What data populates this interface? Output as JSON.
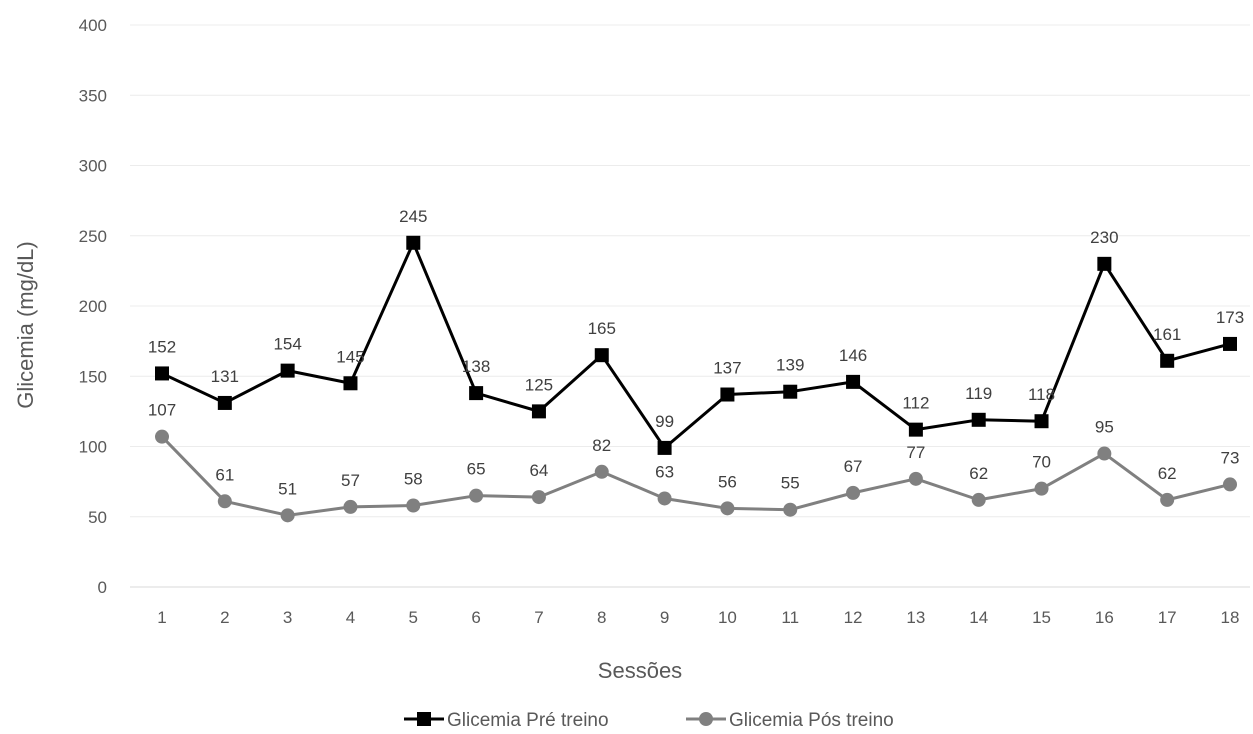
{
  "chart_data": {
    "type": "line",
    "title": "",
    "xlabel": "Sessões",
    "ylabel": "Glicemia (mg/dL)",
    "ylim": [
      0,
      400
    ],
    "yticks": [
      0,
      50,
      100,
      150,
      200,
      250,
      300,
      350,
      400
    ],
    "grid": true,
    "legend_position": "bottom",
    "categories": [
      "1",
      "2",
      "3",
      "4",
      "5",
      "6",
      "7",
      "8",
      "9",
      "10",
      "11",
      "12",
      "13",
      "14",
      "15",
      "16",
      "17",
      "18"
    ],
    "series": [
      {
        "name": "Glicemia Pré treino",
        "marker": "square",
        "color": "#000000",
        "values": [
          152,
          131,
          154,
          145,
          245,
          138,
          125,
          165,
          99,
          137,
          139,
          146,
          112,
          119,
          118,
          230,
          161,
          173
        ]
      },
      {
        "name": "Glicemia Pós treino",
        "marker": "circle",
        "color": "#808080",
        "values": [
          107,
          61,
          51,
          57,
          58,
          65,
          64,
          82,
          63,
          56,
          55,
          67,
          77,
          62,
          70,
          95,
          62,
          73
        ]
      }
    ]
  }
}
